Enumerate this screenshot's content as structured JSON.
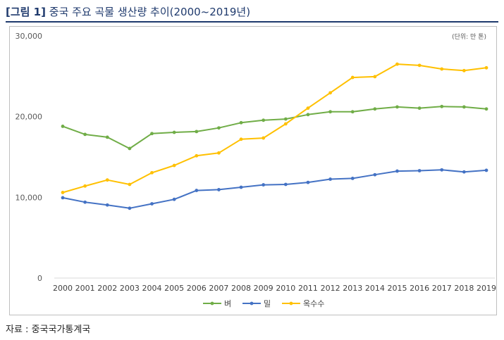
{
  "figure": {
    "label": "[그림 1]",
    "caption": "중국 주요 곡물 생산량 추이(2000~2019년)",
    "source": "자료 : 중국국가통계국"
  },
  "chart_data": {
    "type": "line",
    "unit_note": "(단위: 만 톤)",
    "categories": [
      "2000",
      "2001",
      "2002",
      "2003",
      "2004",
      "2005",
      "2006",
      "2007",
      "2008",
      "2009",
      "2010",
      "2011",
      "2012",
      "2013",
      "2014",
      "2015",
      "2016",
      "2017",
      "2018",
      "2019"
    ],
    "ylim": [
      0,
      30000
    ],
    "yticks": [
      0,
      10000,
      20000,
      30000
    ],
    "ytick_labels": [
      "0",
      "10,000",
      "20,000",
      "30,000"
    ],
    "grid": false,
    "legend_position": "bottom",
    "series": [
      {
        "name": "벼",
        "color": "#70ad47",
        "values": [
          18800,
          17800,
          17450,
          16050,
          17900,
          18050,
          18150,
          18600,
          19250,
          19550,
          19700,
          20250,
          20600,
          20600,
          20950,
          21200,
          21050,
          21250,
          21200,
          20950
        ]
      },
      {
        "name": "밀",
        "color": "#4472c4",
        "values": [
          9950,
          9400,
          9050,
          8650,
          9200,
          9750,
          10850,
          10950,
          11250,
          11550,
          11600,
          11850,
          12250,
          12350,
          12800,
          13250,
          13300,
          13400,
          13150,
          13350
        ]
      },
      {
        "name": "옥수수",
        "color": "#ffc000",
        "values": [
          10600,
          11400,
          12150,
          11600,
          13050,
          13950,
          15150,
          15500,
          17200,
          17350,
          19100,
          21050,
          22950,
          24850,
          24950,
          26500,
          26350,
          25900,
          25700,
          26050
        ]
      }
    ]
  }
}
